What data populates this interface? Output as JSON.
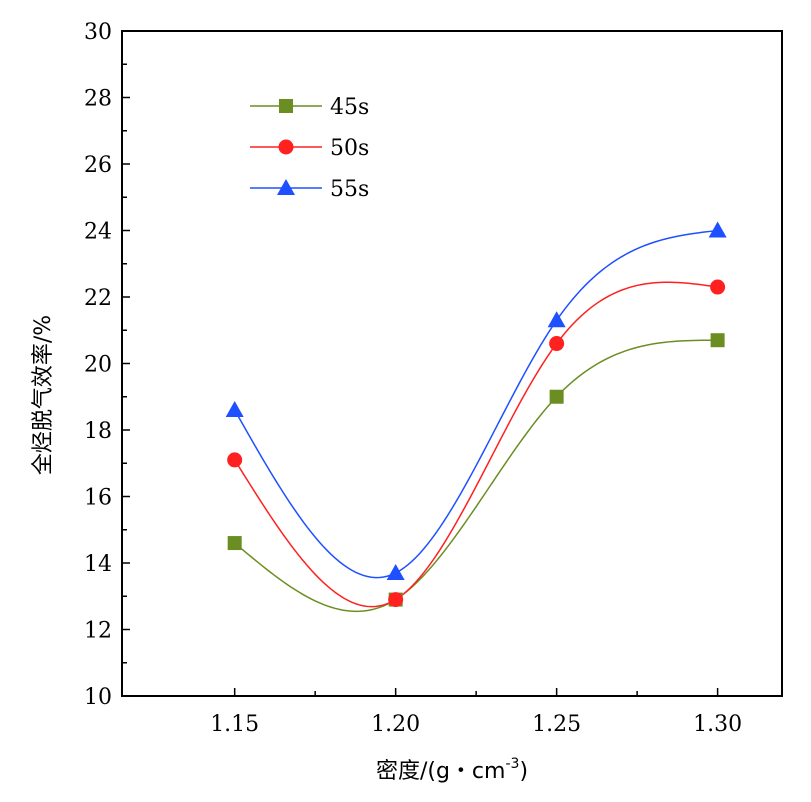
{
  "chart_data": {
    "type": "line",
    "xlabel": "密度/(g・cm",
    "xlabel_sup": "-3",
    "xlabel_end": ")",
    "ylabel": "全烃脱气效率/%",
    "x": [
      1.15,
      1.2,
      1.25,
      1.3
    ],
    "x_tick_labels": [
      "1.15",
      "1.20",
      "1.25",
      "1.30"
    ],
    "y_tick_labels": [
      "10",
      "12",
      "14",
      "16",
      "18",
      "20",
      "22",
      "24",
      "26",
      "28",
      "30"
    ],
    "xlim": [
      1.115,
      1.32
    ],
    "ylim": [
      10,
      30
    ],
    "legend_position": "top-left",
    "series": [
      {
        "name": "45s",
        "marker": "square",
        "color": "#6b8e23",
        "values": [
          14.6,
          12.9,
          19.0,
          20.7
        ]
      },
      {
        "name": "50s",
        "marker": "circle",
        "color": "#ff2020",
        "values": [
          17.1,
          12.9,
          20.6,
          22.3
        ]
      },
      {
        "name": "55s",
        "marker": "triangle",
        "color": "#1e50ff",
        "values": [
          18.6,
          13.7,
          21.3,
          24.0
        ]
      }
    ]
  }
}
